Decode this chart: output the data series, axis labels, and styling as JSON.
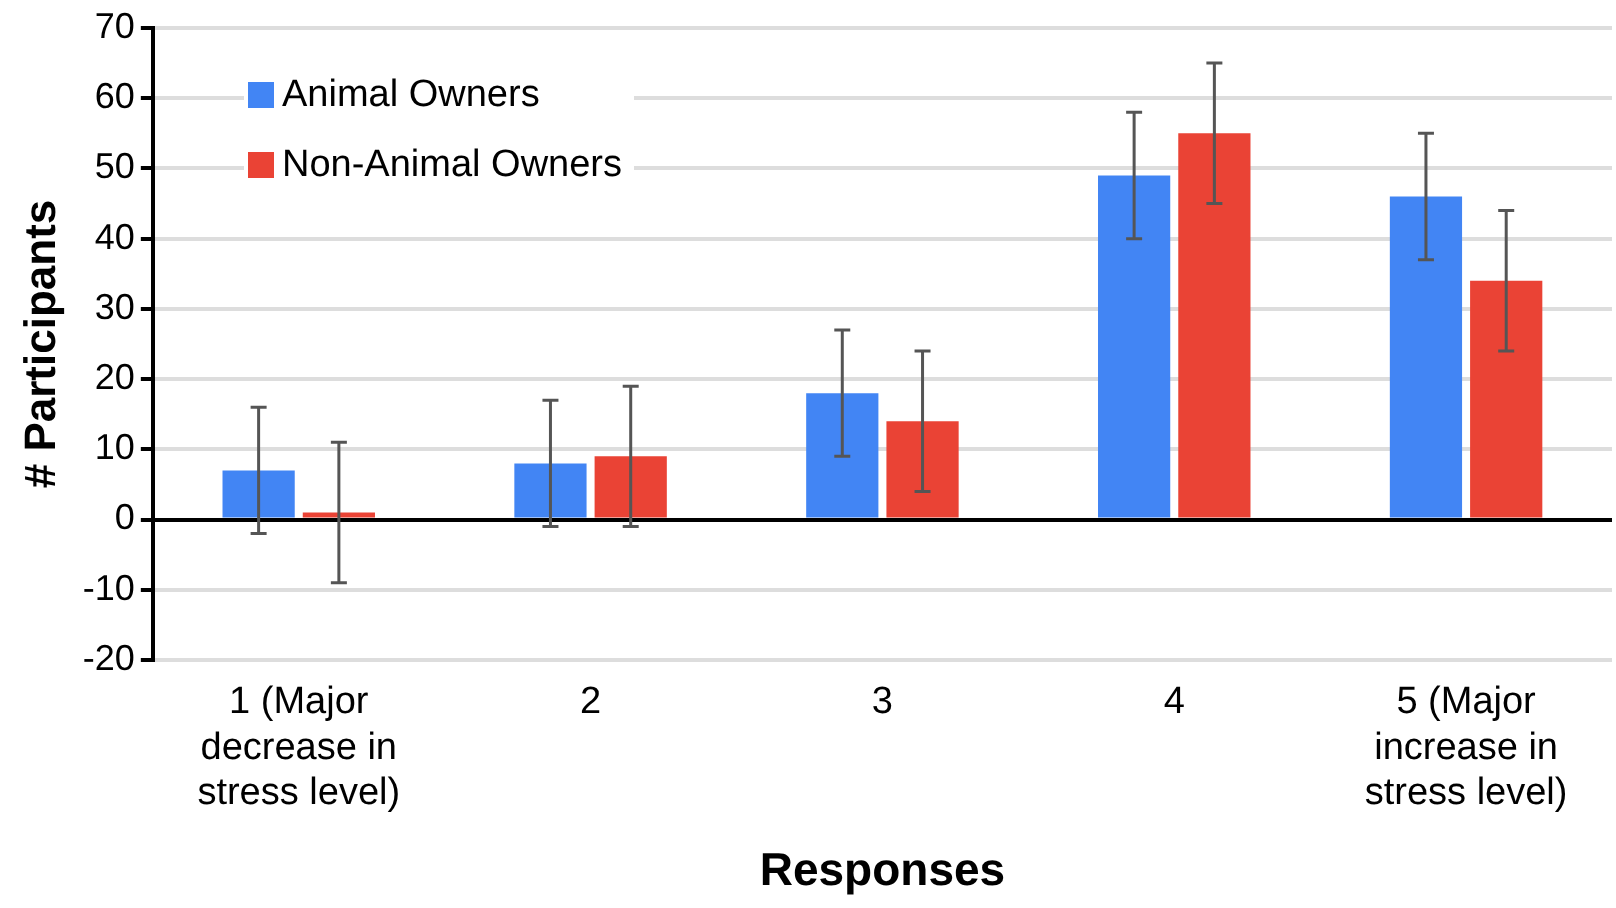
{
  "chart_data": {
    "type": "bar",
    "xlabel": "Responses",
    "ylabel": "# Participants",
    "categories": [
      "1 (Major decrease in stress level)",
      "2",
      "3",
      "4",
      "5 (Major increase in stress level)"
    ],
    "series": [
      {
        "name": "Animal Owners",
        "color": "#4285f4",
        "values": [
          7,
          8,
          18,
          49,
          46
        ],
        "errors": [
          9,
          9,
          9,
          9,
          9
        ]
      },
      {
        "name": "Non-Animal Owners",
        "color": "#ea4335",
        "values": [
          1,
          9,
          14,
          55,
          34
        ],
        "errors": [
          10,
          10,
          10,
          10,
          10
        ]
      }
    ],
    "ylim": [
      -20,
      70
    ],
    "yticks": [
      -20,
      -10,
      0,
      10,
      20,
      30,
      40,
      50,
      60,
      70
    ],
    "grid": "y",
    "legend": "top left"
  }
}
